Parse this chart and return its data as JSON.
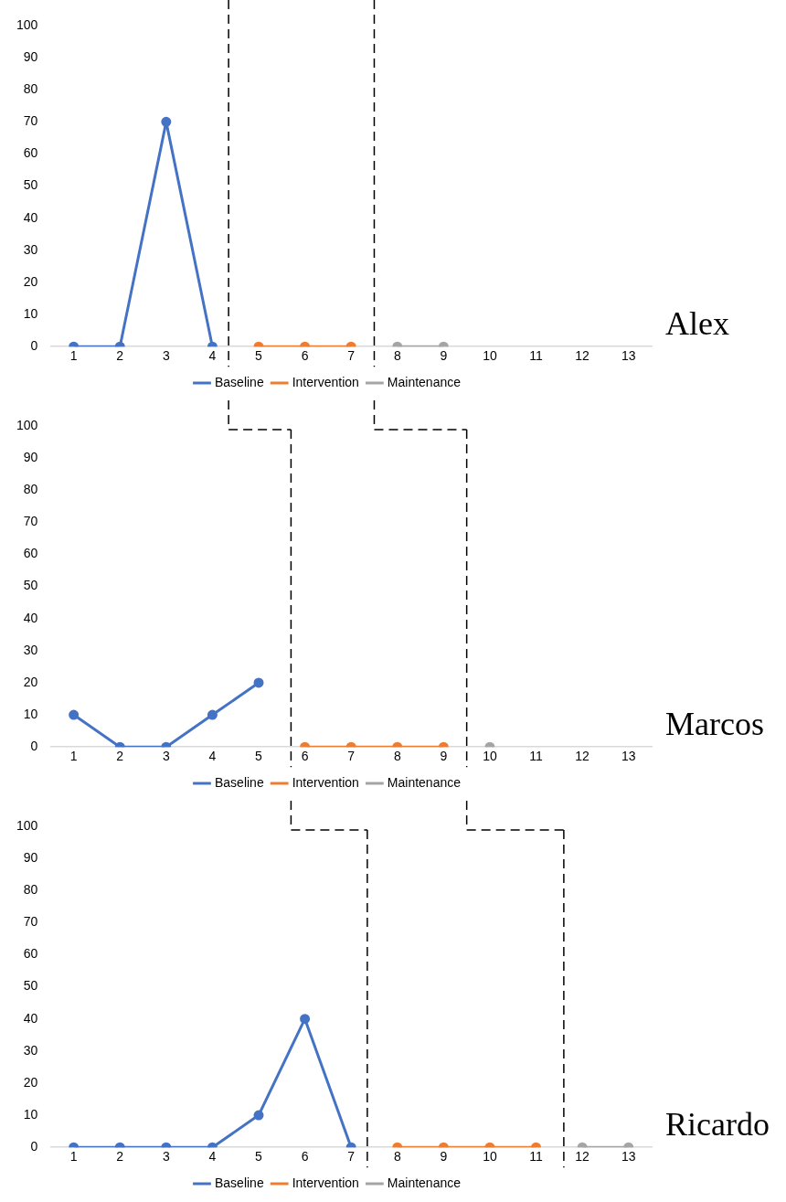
{
  "chart_data": [
    {
      "type": "line",
      "title": "Alex",
      "xlim": [
        0.5,
        13.5
      ],
      "xticks": [
        1,
        2,
        3,
        4,
        5,
        6,
        7,
        8,
        9,
        10,
        11,
        12,
        13
      ],
      "ylim": [
        0,
        100
      ],
      "yticks": [
        0,
        10,
        20,
        30,
        40,
        50,
        60,
        70,
        80,
        90,
        100
      ],
      "grid": false,
      "legend": "bottom",
      "marker": "circle",
      "line_style": "solid",
      "series": [
        {
          "name": "Baseline",
          "color": "#4472c4",
          "x": [
            1,
            2,
            3,
            4
          ],
          "values": [
            0,
            0,
            70,
            0
          ]
        },
        {
          "name": "Intervention",
          "color": "#ed7d31",
          "x": [
            5,
            6,
            7
          ],
          "values": [
            0,
            0,
            0
          ]
        },
        {
          "name": "Maintenance",
          "color": "#a5a5a5",
          "x": [
            8,
            9
          ],
          "values": [
            0,
            0
          ]
        }
      ],
      "ref_lines": [
        {
          "axis": "x",
          "value": 4.35,
          "color": "#000000",
          "line_style": "dashed"
        },
        {
          "axis": "x",
          "value": 7.5,
          "color": "#000000",
          "line_style": "dashed"
        }
      ]
    },
    {
      "type": "line",
      "title": "Marcos",
      "xlim": [
        0.5,
        13.5
      ],
      "xticks": [
        1,
        2,
        3,
        4,
        5,
        6,
        7,
        8,
        9,
        10,
        11,
        12,
        13
      ],
      "ylim": [
        0,
        100
      ],
      "yticks": [
        0,
        10,
        20,
        30,
        40,
        50,
        60,
        70,
        80,
        90,
        100
      ],
      "grid": false,
      "legend": "bottom",
      "marker": "circle",
      "line_style": "solid",
      "series": [
        {
          "name": "Baseline",
          "color": "#4472c4",
          "x": [
            1,
            2,
            3,
            4,
            5
          ],
          "values": [
            10,
            0,
            0,
            10,
            20
          ]
        },
        {
          "name": "Intervention",
          "color": "#ed7d31",
          "x": [
            6,
            7,
            8,
            9
          ],
          "values": [
            0,
            0,
            0,
            0
          ]
        },
        {
          "name": "Maintenance",
          "color": "#a5a5a5",
          "x": [
            10
          ],
          "values": [
            0
          ]
        }
      ],
      "ref_lines": [
        {
          "axis": "x",
          "value": 5.7,
          "color": "#000000",
          "line_style": "dashed"
        },
        {
          "axis": "x",
          "value": 9.5,
          "color": "#000000",
          "line_style": "dashed"
        }
      ]
    },
    {
      "type": "line",
      "title": "Ricardo",
      "xlim": [
        0.5,
        13.5
      ],
      "xticks": [
        1,
        2,
        3,
        4,
        5,
        6,
        7,
        8,
        9,
        10,
        11,
        12,
        13
      ],
      "ylim": [
        0,
        100
      ],
      "yticks": [
        0,
        10,
        20,
        30,
        40,
        50,
        60,
        70,
        80,
        90,
        100
      ],
      "grid": false,
      "legend": "bottom",
      "marker": "circle",
      "line_style": "solid",
      "series": [
        {
          "name": "Baseline",
          "color": "#4472c4",
          "x": [
            1,
            2,
            3,
            4,
            5,
            6,
            7
          ],
          "values": [
            0,
            0,
            0,
            0,
            10,
            40,
            0
          ]
        },
        {
          "name": "Intervention",
          "color": "#ed7d31",
          "x": [
            8,
            9,
            10,
            11
          ],
          "values": [
            0,
            0,
            0,
            0
          ]
        },
        {
          "name": "Maintenance",
          "color": "#a5a5a5",
          "x": [
            12,
            13
          ],
          "values": [
            0,
            0
          ]
        }
      ],
      "ref_lines": [
        {
          "axis": "x",
          "value": 7.35,
          "color": "#000000",
          "line_style": "dashed"
        },
        {
          "axis": "x",
          "value": 11.6,
          "color": "#000000",
          "line_style": "dashed"
        }
      ]
    }
  ]
}
